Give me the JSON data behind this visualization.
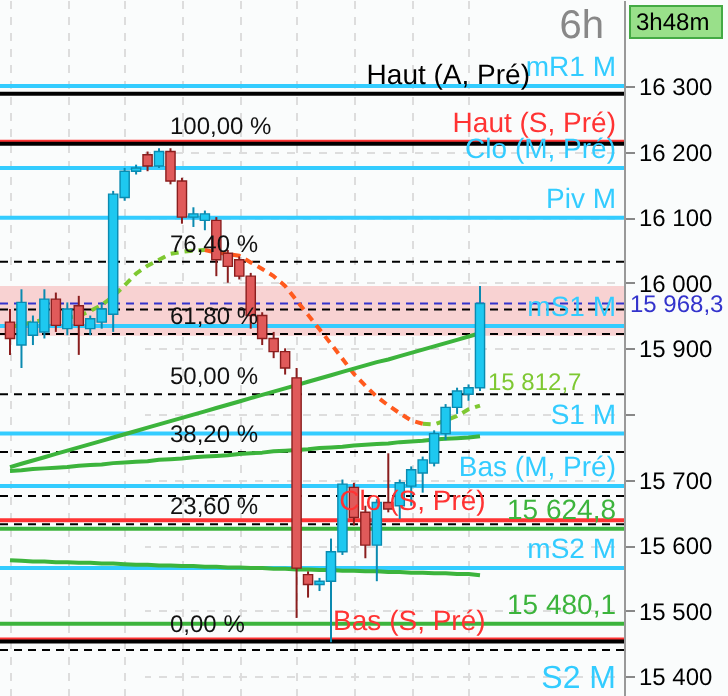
{
  "chart_data": {
    "type": "candlestick",
    "title": "6h",
    "subtitle": "3h48m",
    "categories": [
      null,
      null,
      null,
      null,
      null,
      null,
      null,
      null,
      null,
      null,
      null,
      null,
      null,
      null,
      null,
      null,
      null,
      null,
      null,
      null,
      null,
      null,
      null,
      null,
      null,
      null,
      null,
      null,
      null,
      null,
      null,
      null,
      null,
      null,
      null,
      null,
      null,
      null,
      null,
      null,
      null,
      null
    ],
    "ohlc": [
      [
        15940,
        15960,
        15890,
        15915
      ],
      [
        15905,
        15990,
        15870,
        15970
      ],
      [
        15920,
        15950,
        15905,
        15940
      ],
      [
        15925,
        15990,
        15915,
        15975
      ],
      [
        15975,
        15985,
        15925,
        15935
      ],
      [
        15930,
        15970,
        15920,
        15960
      ],
      [
        15965,
        15980,
        15890,
        15935
      ],
      [
        15930,
        15950,
        15920,
        15945
      ],
      [
        15940,
        15970,
        15930,
        15960
      ],
      [
        15952,
        16140,
        15925,
        16135
      ],
      [
        16130,
        16175,
        16125,
        16170
      ],
      [
        16170,
        16180,
        16165,
        16175
      ],
      [
        16195,
        16200,
        16170,
        16178
      ],
      [
        16178,
        16205,
        16175,
        16200
      ],
      [
        16200,
        16205,
        16150,
        16155
      ],
      [
        16155,
        16160,
        16090,
        16100
      ],
      [
        16100,
        16115,
        16085,
        16105
      ],
      [
        16095,
        16110,
        16080,
        16105
      ],
      [
        16095,
        16100,
        16010,
        16035
      ],
      [
        16045,
        16050,
        16000,
        16025
      ],
      [
        16035,
        16040,
        16005,
        16010
      ],
      [
        16010,
        16015,
        15930,
        15950
      ],
      [
        15950,
        15955,
        15905,
        15915
      ],
      [
        15915,
        15925,
        15885,
        15895
      ],
      [
        15895,
        15900,
        15860,
        15870
      ],
      [
        15855,
        15870,
        15489,
        15565
      ],
      [
        15555,
        15560,
        15520,
        15540
      ],
      [
        15540,
        15550,
        15530,
        15545
      ],
      [
        15545,
        15610,
        15452,
        15590
      ],
      [
        15590,
        15700,
        15585,
        15693
      ],
      [
        15688,
        15695,
        15630,
        15642
      ],
      [
        15650,
        15660,
        15580,
        15600
      ],
      [
        15600,
        15670,
        15545,
        15665
      ],
      [
        15665,
        15740,
        15650,
        15655
      ],
      [
        15660,
        15700,
        15640,
        15695
      ],
      [
        15690,
        15720,
        15660,
        15715
      ],
      [
        15710,
        15735,
        15680,
        15730
      ],
      [
        15725,
        15775,
        15720,
        15770
      ],
      [
        15770,
        15815,
        15760,
        15810
      ],
      [
        15810,
        15840,
        15800,
        15835
      ],
      [
        15830,
        15845,
        15820,
        15840
      ],
      [
        15840,
        15995,
        15835,
        15968.3
      ]
    ],
    "ylim": [
      15370,
      16431
    ],
    "yticks": [
      {
        "value": 15400,
        "label": "15 400"
      },
      {
        "value": 15500,
        "label": "15 500"
      },
      {
        "value": 15600,
        "label": "15 600"
      },
      {
        "value": 15700,
        "label": "15 700"
      },
      {
        "value": 15800,
        "label": null
      },
      {
        "value": 15900,
        "label": "15 900"
      },
      {
        "value": 16000,
        "label": "16 000"
      },
      {
        "value": 16100,
        "label": "16 100"
      },
      {
        "value": 16200,
        "label": "16 200"
      },
      {
        "value": 16300,
        "label": "16 300"
      }
    ],
    "tick_labels": "y",
    "grid": true,
    "series": [
      {
        "type": "line",
        "color": "#7ec832",
        "line_style": "dashed",
        "values": [
          15932,
          15936,
          15940,
          15944,
          15945,
          15947,
          15949,
          15957,
          15966,
          15979,
          15996,
          16014,
          16026,
          16035,
          16044,
          16047,
          16049,
          16050,
          null,
          null,
          null,
          null,
          null,
          null,
          null,
          null,
          null,
          null,
          null,
          null,
          null,
          null,
          null,
          null,
          null,
          null,
          15785,
          15784,
          15790,
          15797,
          15807,
          15812.7
        ],
        "value_labels": [
          null,
          null,
          null,
          null,
          null,
          null,
          null,
          null,
          null,
          null,
          null,
          null,
          null,
          null,
          null,
          null,
          null,
          null,
          null,
          null,
          null,
          null,
          null,
          null,
          null,
          null,
          null,
          null,
          null,
          null,
          null,
          null,
          null,
          null,
          null,
          null,
          null,
          null,
          null,
          null,
          null,
          "15 812,7"
        ]
      },
      {
        "type": "line",
        "color": "#ff5a1e",
        "line_style": "dashed",
        "values": [
          null,
          null,
          null,
          null,
          null,
          null,
          null,
          null,
          null,
          null,
          null,
          null,
          null,
          null,
          null,
          null,
          null,
          16050,
          16046,
          16044,
          16041,
          16031,
          16021,
          16010,
          15995,
          15973,
          15951,
          15929,
          15907,
          15884,
          15861,
          15843,
          15826,
          15813,
          15801,
          15790,
          15785,
          null,
          null,
          null,
          null,
          null
        ]
      },
      {
        "type": "line",
        "color": "#3cb43c",
        "line_style": "solid",
        "values": [
          15719,
          15724,
          15729,
          15734,
          15739,
          15744,
          15749,
          15754,
          15759,
          15764,
          15769,
          15774,
          15779,
          15784,
          15789,
          15794,
          15799,
          15804,
          15809,
          15814,
          15819,
          15824,
          15829,
          15834,
          15839,
          15844,
          15849,
          15854,
          15859,
          15864,
          15869,
          15874,
          15879,
          15883,
          15888,
          15893,
          15898,
          15903,
          15908,
          15913,
          15918,
          15923
        ]
      },
      {
        "type": "line",
        "color": "#3cb43c",
        "line_style": "solid",
        "values": [
          15713,
          15714,
          15716,
          15717,
          15718,
          15719,
          15721,
          15722,
          15723,
          15725,
          15726,
          15727,
          15728,
          15730,
          15731,
          15732,
          15734,
          15735,
          15736,
          15737,
          15739,
          15740,
          15741,
          15743,
          15744,
          15745,
          15746,
          15748,
          15749,
          15750,
          15752,
          15753,
          15754,
          15755,
          15757,
          15758,
          15759,
          15761,
          15762,
          15763,
          15764,
          15766
        ]
      },
      {
        "type": "line",
        "color": "#3cb43c",
        "line_style": "solid",
        "values": [
          15577,
          15576,
          15575,
          15575,
          15574,
          15574,
          15573,
          15573,
          15572,
          15572,
          15571,
          15570,
          15570,
          15569,
          15569,
          15568,
          15568,
          15567,
          15567,
          15566,
          15566,
          15565,
          15565,
          15564,
          15564,
          15563,
          15563,
          15562,
          15562,
          15561,
          15561,
          15560,
          15560,
          15559,
          15559,
          15558,
          15558,
          15557,
          15557,
          15556,
          15556,
          15554
        ]
      }
    ],
    "bands": [
      {
        "axis": "y",
        "from": 15919,
        "to": 15995,
        "color": "#f8d2d2"
      }
    ],
    "ref_lines": [
      {
        "axis": "y",
        "value": 16300,
        "color": "#33ccff",
        "line_style": "solid",
        "label": "mR1 M"
      },
      {
        "axis": "y",
        "value": 16288,
        "color": "#000000",
        "line_style": "solid",
        "label": "Haut (A, Pré)"
      },
      {
        "axis": "y",
        "value": 16215,
        "color": "#ff3333",
        "line_style": "solid",
        "label": "Haut (S, Pré)"
      },
      {
        "axis": "y",
        "value": 16212,
        "color": "#000000",
        "line_style": "solid"
      },
      {
        "axis": "y",
        "value": 16175,
        "color": "#33ccff",
        "line_style": "solid",
        "label": "Clo (M, Pré)"
      },
      {
        "axis": "y",
        "value": 16099,
        "color": "#33ccff",
        "line_style": "solid",
        "label": "Piv M"
      },
      {
        "axis": "y",
        "value": 16032,
        "color": "#000000",
        "line_style": "dashed"
      },
      {
        "axis": "y",
        "value": 15968.3,
        "color": "#3333cc",
        "line_style": "dashed",
        "label": "15 968,3"
      },
      {
        "axis": "y",
        "value": 15959,
        "color": "#000000",
        "line_style": "dashed"
      },
      {
        "axis": "y",
        "value": 15934,
        "color": "#33ccff",
        "line_style": "solid",
        "label": "mS1 M"
      },
      {
        "axis": "y",
        "value": 15922,
        "color": "#000000",
        "line_style": "dashed"
      },
      {
        "axis": "y",
        "value": 15830,
        "color": "#000000",
        "line_style": "dashed"
      },
      {
        "axis": "y",
        "value": 15770,
        "color": "#33ccff",
        "line_style": "solid",
        "label": "S1 M"
      },
      {
        "axis": "y",
        "value": 15742,
        "color": "#000000",
        "line_style": "dashed"
      },
      {
        "axis": "y",
        "value": 15690,
        "color": "#33ccff",
        "line_style": "solid",
        "label": "Bas (M, Pré)"
      },
      {
        "axis": "y",
        "value": 15675,
        "color": "#000000",
        "line_style": "dashed"
      },
      {
        "axis": "y",
        "value": 15638,
        "color": "#ff3333",
        "line_style": "solid",
        "label": "Clo (S, Pré)"
      },
      {
        "axis": "y",
        "value": 15632,
        "color": "#000000",
        "line_style": "dashed"
      },
      {
        "axis": "y",
        "value": 15624.8,
        "color": "#3cb43c",
        "line_style": "solid",
        "label": "15 624,8"
      },
      {
        "axis": "y",
        "value": 15565,
        "color": "#33ccff",
        "line_style": "solid",
        "label": "mS2 M"
      },
      {
        "axis": "y",
        "value": 15480.1,
        "color": "#3cb43c",
        "line_style": "solid",
        "label": "15 480,1"
      },
      {
        "axis": "y",
        "value": 15456,
        "color": "#ff3333",
        "line_style": "solid",
        "label": "Bas (S, Pré)"
      },
      {
        "axis": "y",
        "value": 15453,
        "color": "#000000",
        "line_style": "solid"
      },
      {
        "axis": "y",
        "value": 15440,
        "color": "#000000",
        "line_style": "dashed"
      }
    ],
    "annotations": [
      {
        "text": "100,00 %",
        "y": 16212
      },
      {
        "text": "76,40 %",
        "y": 16032
      },
      {
        "text": "61,80 %",
        "y": 15922
      },
      {
        "text": "50,00 %",
        "y": 15830
      },
      {
        "text": "38,20 %",
        "y": 15742
      },
      {
        "text": "23,60 %",
        "y": 15632
      },
      {
        "text": "0,00 %",
        "y": 15453
      },
      "S2 M"
    ]
  }
}
